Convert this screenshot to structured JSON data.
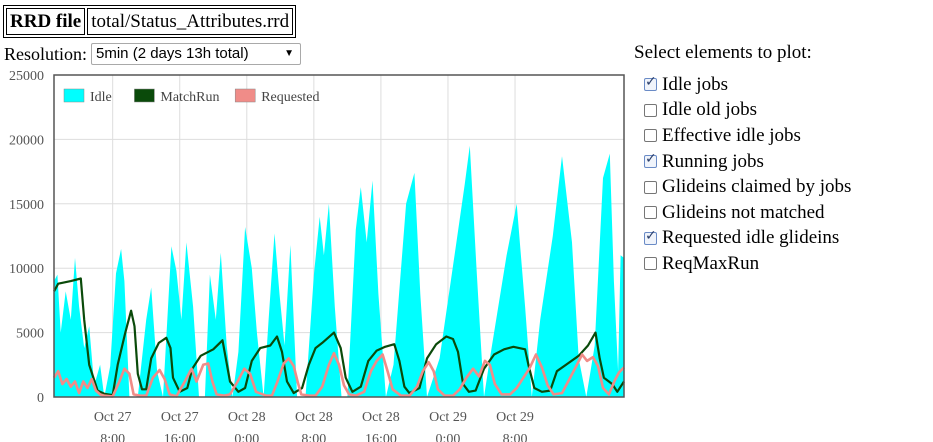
{
  "file": {
    "label": "RRD file",
    "path": "total/Status_Attributes.rrd"
  },
  "resolution": {
    "label": "Resolution:",
    "selected": "5min (2 days 13h total)"
  },
  "panel": {
    "title": "Select elements to plot:",
    "options": [
      {
        "label": "Idle jobs",
        "checked": true
      },
      {
        "label": "Idle old jobs",
        "checked": false
      },
      {
        "label": "Effective idle jobs",
        "checked": false
      },
      {
        "label": "Running jobs",
        "checked": true
      },
      {
        "label": "Glideins claimed by jobs",
        "checked": false
      },
      {
        "label": "Glideins not matched",
        "checked": false
      },
      {
        "label": "Requested idle glideins",
        "checked": true
      },
      {
        "label": "ReqMaxRun",
        "checked": false
      }
    ]
  },
  "colors": {
    "idle": "#00ffff",
    "matchrun": "#0a4a0a",
    "requested": "#f08c88",
    "grid": "#dddddd"
  },
  "chart_data": {
    "type": "area",
    "ylim": [
      0,
      25000
    ],
    "xlim_hours": [
      -7,
      61
    ],
    "yticks": [
      "0",
      "5000",
      "10000",
      "15000",
      "20000",
      "25000"
    ],
    "xticks": [
      {
        "line1": "Oct 27",
        "line2": "8:00"
      },
      {
        "line1": "Oct 27",
        "line2": "16:00"
      },
      {
        "line1": "Oct 28",
        "line2": "0:00"
      },
      {
        "line1": "Oct 28",
        "line2": "8:00"
      },
      {
        "line1": "Oct 28",
        "line2": "16:00"
      },
      {
        "line1": "Oct 29",
        "line2": "0:00"
      },
      {
        "line1": "Oct 29",
        "line2": "8:00"
      }
    ],
    "legend_position": "top-left",
    "series": [
      {
        "name": "Idle",
        "style": "area",
        "points": [
          [
            -7,
            9000
          ],
          [
            -6.6,
            9500
          ],
          [
            -6.2,
            5000
          ],
          [
            -5.6,
            8200
          ],
          [
            -5,
            6000
          ],
          [
            -4.5,
            10800
          ],
          [
            -4,
            7000
          ],
          [
            -3.4,
            3800
          ],
          [
            -2.8,
            5500
          ],
          [
            -2.2,
            900
          ],
          [
            -1.5,
            2500
          ],
          [
            -1,
            0
          ],
          [
            -0.3,
            2400
          ],
          [
            0.4,
            9600
          ],
          [
            1,
            11500
          ],
          [
            1.4,
            9000
          ],
          [
            2,
            0
          ],
          [
            3,
            0
          ],
          [
            4,
            6000
          ],
          [
            4.6,
            8500
          ],
          [
            5.3,
            2000
          ],
          [
            6,
            0
          ],
          [
            7,
            11700
          ],
          [
            7.6,
            9800
          ],
          [
            8.2,
            6000
          ],
          [
            8.8,
            12000
          ],
          [
            9.6,
            7000
          ],
          [
            10.3,
            0
          ],
          [
            11,
            0
          ],
          [
            11.6,
            9500
          ],
          [
            12.3,
            6000
          ],
          [
            12.9,
            11200
          ],
          [
            13.6,
            4000
          ],
          [
            14.3,
            0
          ],
          [
            15,
            3500
          ],
          [
            15.8,
            13200
          ],
          [
            16.6,
            10000
          ],
          [
            17.2,
            5000
          ],
          [
            18,
            0
          ],
          [
            18.6,
            6000
          ],
          [
            19.3,
            12700
          ],
          [
            19.9,
            8000
          ],
          [
            20.5,
            4000
          ],
          [
            21.2,
            11800
          ],
          [
            22,
            0
          ],
          [
            23,
            0
          ],
          [
            24,
            9500
          ],
          [
            24.7,
            14000
          ],
          [
            25.2,
            11000
          ],
          [
            25.8,
            15000
          ],
          [
            26.5,
            7000
          ],
          [
            27.3,
            0
          ],
          [
            28,
            0
          ],
          [
            29,
            13000
          ],
          [
            29.6,
            16300
          ],
          [
            30.3,
            12000
          ],
          [
            31,
            16800
          ],
          [
            31.7,
            8000
          ],
          [
            32.6,
            0
          ],
          [
            33.5,
            2500
          ],
          [
            35,
            15000
          ],
          [
            36,
            17400
          ],
          [
            36.7,
            8000
          ],
          [
            37.5,
            0
          ],
          [
            39,
            3000
          ],
          [
            41,
            12000
          ],
          [
            42,
            16500
          ],
          [
            42.6,
            19500
          ],
          [
            43.4,
            10000
          ],
          [
            44.3,
            0
          ],
          [
            45,
            3000
          ],
          [
            47,
            11000
          ],
          [
            48.2,
            15000
          ],
          [
            49.2,
            7000
          ],
          [
            50,
            0
          ],
          [
            51,
            6000
          ],
          [
            52.5,
            12500
          ],
          [
            53.6,
            18700
          ],
          [
            54.8,
            12000
          ],
          [
            55.6,
            3000
          ],
          [
            56.5,
            0
          ],
          [
            57.5,
            4000
          ],
          [
            58.5,
            17000
          ],
          [
            59.3,
            18900
          ],
          [
            59.8,
            9000
          ],
          [
            60.3,
            2000
          ],
          [
            60.6,
            11000
          ],
          [
            61,
            10800
          ]
        ]
      },
      {
        "name": "MatchRun",
        "style": "line",
        "points": [
          [
            -7,
            8200
          ],
          [
            -6.5,
            8800
          ],
          [
            -5,
            9000
          ],
          [
            -3.8,
            9200
          ],
          [
            -3.4,
            6000
          ],
          [
            -2.8,
            2500
          ],
          [
            -1.8,
            500
          ],
          [
            -1,
            250
          ],
          [
            0,
            150
          ],
          [
            0.6,
            2500
          ],
          [
            1.5,
            5000
          ],
          [
            2.2,
            6700
          ],
          [
            2.6,
            5500
          ],
          [
            3,
            1800
          ],
          [
            3.5,
            600
          ],
          [
            4,
            600
          ],
          [
            4.6,
            3000
          ],
          [
            5.5,
            4200
          ],
          [
            6.4,
            4600
          ],
          [
            6.9,
            3800
          ],
          [
            7.2,
            1500
          ],
          [
            8,
            400
          ],
          [
            8.9,
            700
          ],
          [
            9.5,
            2200
          ],
          [
            10.5,
            3200
          ],
          [
            12,
            3700
          ],
          [
            13.1,
            4400
          ],
          [
            13.5,
            3000
          ],
          [
            14,
            1200
          ],
          [
            15,
            400
          ],
          [
            15.8,
            700
          ],
          [
            16.6,
            2800
          ],
          [
            17.6,
            3800
          ],
          [
            18.8,
            4000
          ],
          [
            19.6,
            4700
          ],
          [
            20.2,
            3500
          ],
          [
            20.8,
            1200
          ],
          [
            21.6,
            300
          ],
          [
            22.6,
            700
          ],
          [
            23.4,
            2500
          ],
          [
            24.2,
            3800
          ],
          [
            25,
            4200
          ],
          [
            26.4,
            5000
          ],
          [
            27.2,
            3800
          ],
          [
            27.8,
            1500
          ],
          [
            28.6,
            400
          ],
          [
            29.6,
            800
          ],
          [
            30.5,
            2800
          ],
          [
            31.5,
            3600
          ],
          [
            32.5,
            3900
          ],
          [
            33.6,
            4100
          ],
          [
            34.2,
            2800
          ],
          [
            34.8,
            800
          ],
          [
            35.4,
            300
          ],
          [
            36.6,
            700
          ],
          [
            37.5,
            3000
          ],
          [
            38.6,
            4100
          ],
          [
            39.8,
            4700
          ],
          [
            40.6,
            4500
          ],
          [
            41.2,
            3500
          ],
          [
            41.8,
            1000
          ],
          [
            42.5,
            400
          ],
          [
            43.3,
            500
          ],
          [
            44.3,
            2200
          ],
          [
            45.5,
            3300
          ],
          [
            46.7,
            3700
          ],
          [
            47.8,
            3900
          ],
          [
            49.2,
            3700
          ],
          [
            49.6,
            2500
          ],
          [
            50.3,
            700
          ],
          [
            51.2,
            400
          ],
          [
            52.2,
            500
          ],
          [
            53,
            2000
          ],
          [
            54.3,
            2600
          ],
          [
            55.6,
            3200
          ],
          [
            56.7,
            4000
          ],
          [
            57.6,
            5000
          ],
          [
            58.1,
            3000
          ],
          [
            58.6,
            1500
          ],
          [
            59.6,
            1000
          ],
          [
            60.2,
            400
          ],
          [
            60.6,
            800
          ],
          [
            61,
            1200
          ]
        ]
      },
      {
        "name": "Requested",
        "style": "line",
        "points": [
          [
            -7,
            1500
          ],
          [
            -6.5,
            2000
          ],
          [
            -6,
            1000
          ],
          [
            -5.5,
            1400
          ],
          [
            -5,
            800
          ],
          [
            -4.5,
            1200
          ],
          [
            -4,
            300
          ],
          [
            -3.5,
            1200
          ],
          [
            -3,
            700
          ],
          [
            -2.5,
            1400
          ],
          [
            -2,
            500
          ],
          [
            -1.5,
            200
          ],
          [
            -1,
            100
          ],
          [
            0,
            50
          ],
          [
            0.8,
            1200
          ],
          [
            1.4,
            2200
          ],
          [
            2,
            1800
          ],
          [
            2.5,
            200
          ],
          [
            3.3,
            100
          ],
          [
            4,
            100
          ],
          [
            4.8,
            1500
          ],
          [
            5.6,
            2100
          ],
          [
            6.2,
            1400
          ],
          [
            6.8,
            200
          ],
          [
            7.6,
            50
          ],
          [
            8.6,
            1200
          ],
          [
            9.4,
            2200
          ],
          [
            10,
            1200
          ],
          [
            10.8,
            2500
          ],
          [
            11.4,
            2600
          ],
          [
            11.9,
            1200
          ],
          [
            12.4,
            200
          ],
          [
            13.3,
            100
          ],
          [
            14,
            200
          ],
          [
            14.9,
            1200
          ],
          [
            15.7,
            2200
          ],
          [
            16.4,
            1800
          ],
          [
            17.1,
            400
          ],
          [
            18.3,
            100
          ],
          [
            19,
            100
          ],
          [
            19.6,
            1100
          ],
          [
            20.4,
            2600
          ],
          [
            21,
            3000
          ],
          [
            21.6,
            2400
          ],
          [
            22.1,
            1100
          ],
          [
            22.5,
            200
          ],
          [
            23.4,
            100
          ],
          [
            24.2,
            100
          ],
          [
            25,
            800
          ],
          [
            25.8,
            2500
          ],
          [
            26.4,
            3400
          ],
          [
            27,
            2500
          ],
          [
            27.6,
            900
          ],
          [
            28.2,
            200
          ],
          [
            29,
            100
          ],
          [
            30,
            400
          ],
          [
            30.8,
            2000
          ],
          [
            31.5,
            2800
          ],
          [
            32.2,
            3300
          ],
          [
            32.8,
            2000
          ],
          [
            33.4,
            600
          ],
          [
            34.4,
            100
          ],
          [
            35.4,
            100
          ],
          [
            36.3,
            800
          ],
          [
            37,
            2000
          ],
          [
            37.7,
            2700
          ],
          [
            38.3,
            2000
          ],
          [
            38.8,
            600
          ],
          [
            39.6,
            100
          ],
          [
            40.6,
            100
          ],
          [
            41.4,
            600
          ],
          [
            42.2,
            1500
          ],
          [
            43,
            2200
          ],
          [
            43.7,
            1600
          ],
          [
            44.4,
            2800
          ],
          [
            45,
            2500
          ],
          [
            45.6,
            1000
          ],
          [
            46.4,
            200
          ],
          [
            47.4,
            200
          ],
          [
            48.2,
            700
          ],
          [
            49,
            1500
          ],
          [
            49.7,
            2200
          ],
          [
            50.5,
            3300
          ],
          [
            51.2,
            2300
          ],
          [
            51.9,
            900
          ],
          [
            52.6,
            200
          ],
          [
            53.6,
            300
          ],
          [
            54.5,
            1400
          ],
          [
            55.3,
            2400
          ],
          [
            56,
            3300
          ],
          [
            56.6,
            2800
          ],
          [
            57.3,
            3100
          ],
          [
            57.9,
            2400
          ],
          [
            58.5,
            700
          ],
          [
            59.2,
            200
          ],
          [
            59.9,
            1300
          ],
          [
            60.4,
            1900
          ],
          [
            61,
            2300
          ]
        ]
      }
    ]
  }
}
